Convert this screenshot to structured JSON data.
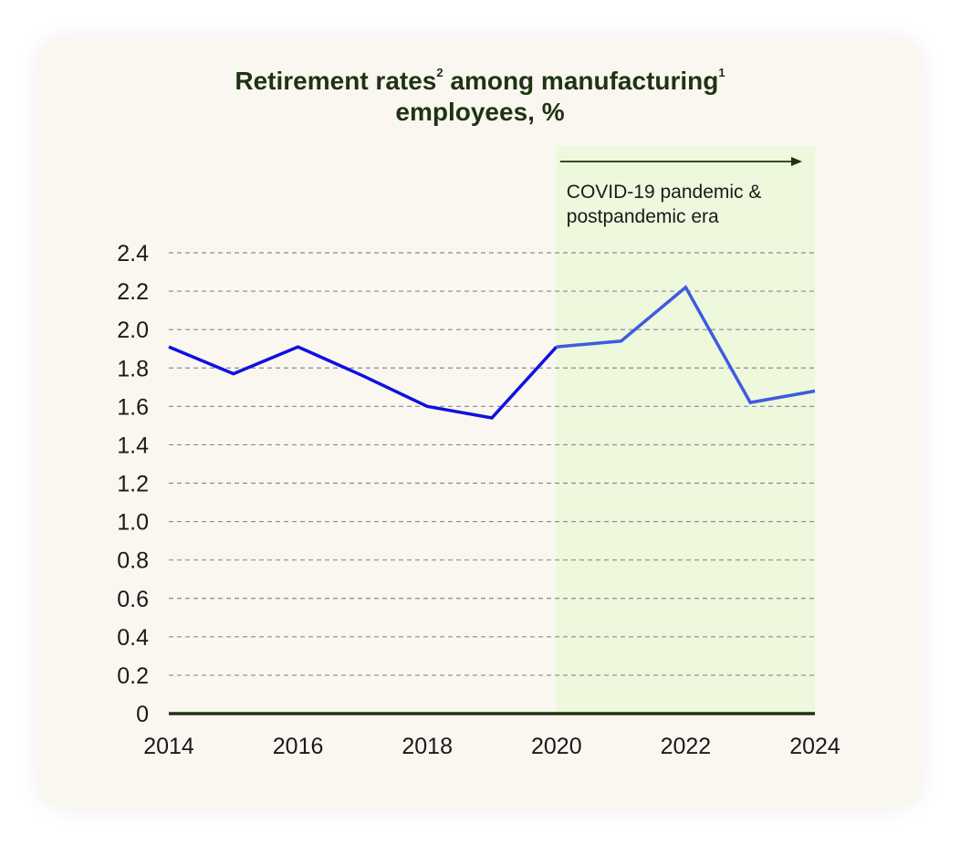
{
  "chart_data": {
    "type": "line",
    "title_main": "Retirement rates",
    "title_sup1": "2",
    "title_mid": " among manufacturing",
    "title_sup2": "1",
    "title_line2": "employees, %",
    "x": [
      2014,
      2015,
      2016,
      2017,
      2018,
      2019,
      2020,
      2021,
      2022,
      2023,
      2024
    ],
    "series": [
      {
        "values": [
          1.91,
          1.77,
          1.91,
          1.76,
          1.6,
          1.54,
          1.91,
          1.94,
          2.22,
          1.62,
          1.68
        ]
      }
    ],
    "x_ticks": [
      "2014",
      "2016",
      "2018",
      "2020",
      "2022",
      "2024"
    ],
    "y_ticks": [
      "0",
      "0.2",
      "0.4",
      "0.6",
      "0.8",
      "1.0",
      "1.2",
      "1.4",
      "1.6",
      "1.8",
      "2.0",
      "2.2",
      "2.4"
    ],
    "xlim": [
      2014,
      2024
    ],
    "ylim": [
      0,
      2.4
    ],
    "grid": true,
    "shaded_region": {
      "from": 2020,
      "to": 2024
    },
    "annotation": {
      "line1": "COVID-19 pandemic &",
      "line2": "postpandemic era"
    },
    "colors": {
      "line_pre": "#1010e0",
      "line_post": "#3e5be0",
      "shade": "#eef8dc",
      "card": "#faf7f0",
      "title": "#1f3312",
      "axis": "#1f3312"
    }
  }
}
